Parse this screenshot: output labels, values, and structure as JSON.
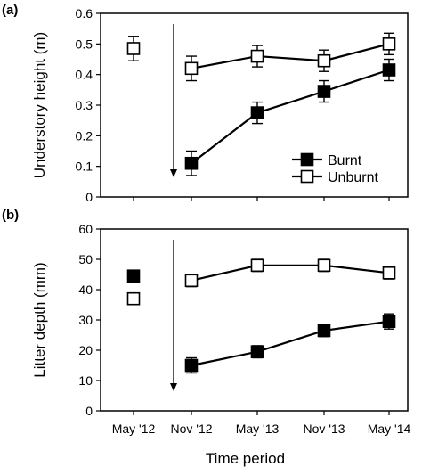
{
  "chart_data": [
    {
      "panel_label": "(a)",
      "type": "line",
      "ylabel": "Understory height (m)",
      "ylim": [
        0,
        0.6
      ],
      "yticks": [
        0,
        0.1,
        0.2,
        0.3,
        0.4,
        0.5,
        0.6
      ],
      "ytick_labels": [
        "0",
        "0.1",
        "0.2",
        "0.3",
        "0.4",
        "0.5",
        "0.6"
      ],
      "categories": [
        "May '12",
        "Nov '12",
        "May '13",
        "Nov '13",
        "May '14"
      ],
      "series": [
        {
          "name": "Burnt",
          "marker": "filled-square",
          "color": "#000000",
          "values": [
            null,
            0.11,
            0.275,
            0.345,
            0.415
          ],
          "errors": [
            null,
            0.04,
            0.035,
            0.035,
            0.035
          ]
        },
        {
          "name": "Unburnt",
          "marker": "open-square",
          "color": "#000000",
          "values": [
            0.485,
            0.42,
            0.46,
            0.445,
            0.5
          ],
          "errors": [
            0.04,
            0.04,
            0.035,
            0.035,
            0.035
          ]
        }
      ],
      "connect_from_index": 1,
      "arrow_at_category": "Nov '12",
      "legend": {
        "position": "bottom-right",
        "entries": [
          "Burnt",
          "Unburnt"
        ]
      }
    },
    {
      "panel_label": "(b)",
      "type": "line",
      "ylabel": "Litter depth (mm)",
      "ylim": [
        0,
        60
      ],
      "yticks": [
        0,
        10,
        20,
        30,
        40,
        50,
        60
      ],
      "ytick_labels": [
        "0",
        "10",
        "20",
        "30",
        "40",
        "50",
        "60"
      ],
      "xlabel": "Time period",
      "categories": [
        "May '12",
        "Nov '12",
        "May '13",
        "Nov '13",
        "May '14"
      ],
      "series": [
        {
          "name": "Burnt",
          "marker": "filled-square",
          "color": "#000000",
          "values": [
            44.5,
            15,
            19.5,
            26.5,
            29.5
          ],
          "errors": [
            null,
            2.5,
            2.0,
            2.0,
            2.5
          ]
        },
        {
          "name": "Unburnt",
          "marker": "open-square",
          "color": "#000000",
          "values": [
            37,
            43,
            48,
            48,
            45.5
          ],
          "errors": [
            1.5,
            2.0,
            2.0,
            2.0,
            2.0
          ]
        }
      ],
      "connect_from_index": 1,
      "arrow_at_category": "Nov '12"
    }
  ]
}
